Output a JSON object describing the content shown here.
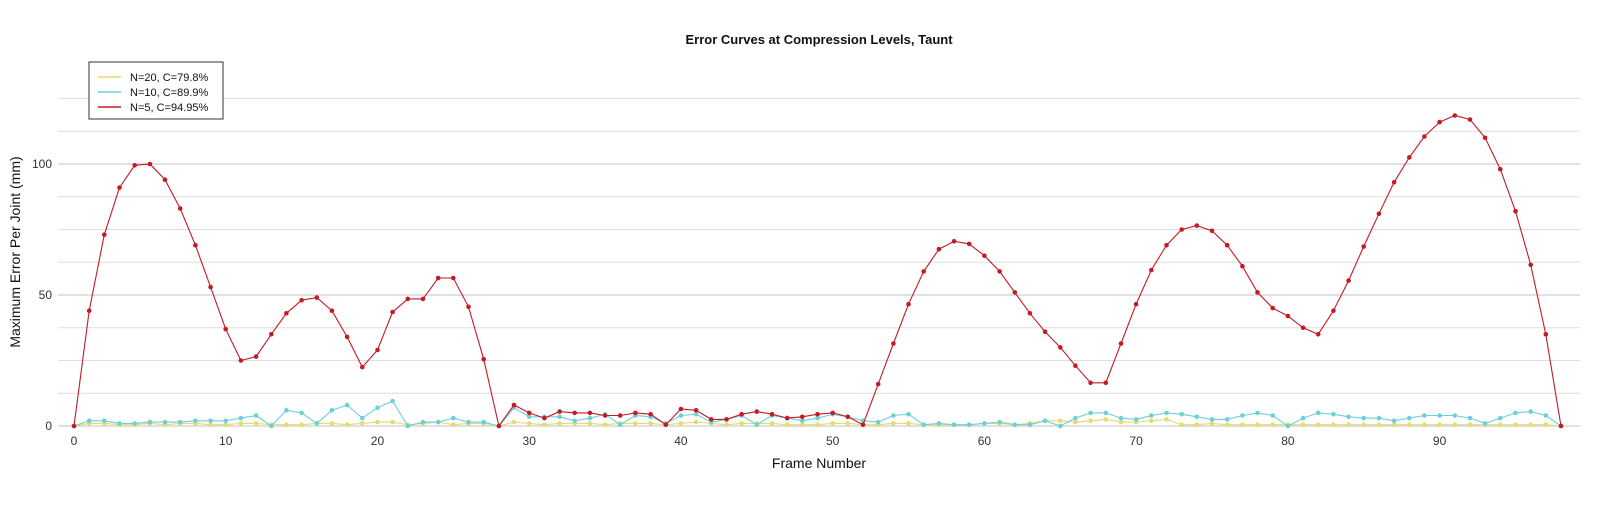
{
  "chart_data": {
    "type": "line",
    "title": "Error Curves at Compression Levels, Taunt",
    "xlabel": "Frame Number",
    "ylabel": "Maximum Error Per Joint (mm)",
    "xlim": [
      0,
      98
    ],
    "ylim": [
      0,
      135
    ],
    "x_ticks": [
      0,
      10,
      20,
      30,
      40,
      50,
      60,
      70,
      80,
      90
    ],
    "y_ticks": [
      0,
      50,
      100
    ],
    "grid": "horizontal",
    "legend_position": "top-left",
    "x": [
      0,
      1,
      2,
      3,
      4,
      5,
      6,
      7,
      8,
      9,
      10,
      11,
      12,
      13,
      14,
      15,
      16,
      17,
      18,
      19,
      20,
      21,
      22,
      23,
      24,
      25,
      26,
      27,
      28,
      29,
      30,
      31,
      32,
      33,
      34,
      35,
      36,
      37,
      38,
      39,
      40,
      41,
      42,
      43,
      44,
      45,
      46,
      47,
      48,
      49,
      50,
      51,
      52,
      53,
      54,
      55,
      56,
      57,
      58,
      59,
      60,
      61,
      62,
      63,
      64,
      65,
      66,
      67,
      68,
      69,
      70,
      71,
      72,
      73,
      74,
      75,
      76,
      77,
      78,
      79,
      80,
      81,
      82,
      83,
      84,
      85,
      86,
      87,
      88,
      89,
      90,
      91,
      92,
      93,
      94,
      95,
      96,
      97,
      98
    ],
    "series": [
      {
        "name": "N=20, C=79.8%",
        "color": "#e3dc6f",
        "values": [
          0,
          1,
          1,
          0.5,
          0.5,
          1,
          0.5,
          1,
          1,
          0.5,
          0.5,
          1,
          1,
          0.5,
          0.5,
          0.5,
          1,
          1,
          0.5,
          1,
          1.5,
          1.5,
          0.5,
          1,
          1.5,
          0.5,
          1,
          1,
          0,
          1.5,
          1,
          0.5,
          1,
          1,
          1,
          0.5,
          1,
          1,
          1,
          0.5,
          1,
          1.5,
          1,
          0.5,
          1,
          1,
          1,
          0.5,
          0.5,
          0.5,
          1,
          1,
          0.5,
          0.5,
          1,
          1,
          0.5,
          0.5,
          0.5,
          0.5,
          1,
          1,
          0.5,
          1,
          2,
          2,
          1.5,
          2,
          2.5,
          1.5,
          1.5,
          2,
          2.5,
          0.5,
          0.5,
          1,
          0.5,
          0.5,
          0.5,
          0.5,
          0.5,
          0.5,
          0.5,
          0.5,
          0.5,
          0.5,
          0.5,
          0.5,
          0.5,
          0.5,
          0.5,
          0.5,
          0.5,
          0.5,
          0.5,
          0.5,
          0.5,
          0.5,
          0
        ]
      },
      {
        "name": "N=10, C=89.9%",
        "color": "#6dd0d8",
        "values": [
          0,
          2,
          2,
          1,
          1,
          1.5,
          1.5,
          1.5,
          2,
          2,
          2,
          3,
          4,
          0,
          6,
          5,
          1,
          6,
          8,
          3,
          7,
          9.5,
          0,
          1.5,
          1.5,
          3,
          1.5,
          1.5,
          0,
          7,
          3.5,
          3.5,
          3.5,
          2,
          3,
          4.5,
          0.5,
          4,
          3.5,
          1,
          4,
          4.5,
          1.5,
          2.5,
          4,
          0.5,
          4,
          3,
          2,
          3,
          4.5,
          3.5,
          2,
          1.5,
          4,
          4.5,
          0.5,
          1,
          0.5,
          0.5,
          1,
          1.5,
          0.5,
          0.5,
          2,
          0,
          3,
          5,
          5,
          3,
          2.5,
          4,
          5,
          4.5,
          3.5,
          2.5,
          2.5,
          4,
          5,
          4,
          0,
          3,
          5,
          4.5,
          3.5,
          3,
          3,
          2,
          3,
          4,
          4,
          4,
          3,
          1,
          3,
          5,
          5.5,
          4,
          0
        ]
      },
      {
        "name": "N=5, C=94.95%",
        "color": "#c41a24",
        "values": [
          0,
          44,
          73,
          91,
          99.5,
          100,
          94,
          83,
          69,
          53,
          37,
          25,
          26.5,
          35,
          43,
          48,
          49,
          44,
          34,
          22.5,
          29,
          43.5,
          48.5,
          48.5,
          56.5,
          56.5,
          45.5,
          25.5,
          0,
          8,
          5,
          3,
          5.5,
          5,
          5,
          4,
          4,
          5,
          4.5,
          0.5,
          6.5,
          6,
          2.5,
          2.5,
          4.5,
          5.5,
          4.5,
          3,
          3.5,
          4.5,
          5,
          3.5,
          0.5,
          16,
          31.5,
          46.5,
          59,
          67.5,
          70.5,
          69.5,
          65,
          59,
          51,
          43,
          36,
          30,
          23,
          16.5,
          16.5,
          31.5,
          46.5,
          59.5,
          69,
          75,
          76.5,
          74.5,
          69,
          61,
          51,
          45,
          42,
          37.5,
          35,
          44,
          55.5,
          68.5,
          81,
          93,
          102.5,
          110.5,
          116,
          118.5,
          117,
          110,
          98,
          82,
          61.5,
          35,
          0
        ]
      }
    ]
  }
}
